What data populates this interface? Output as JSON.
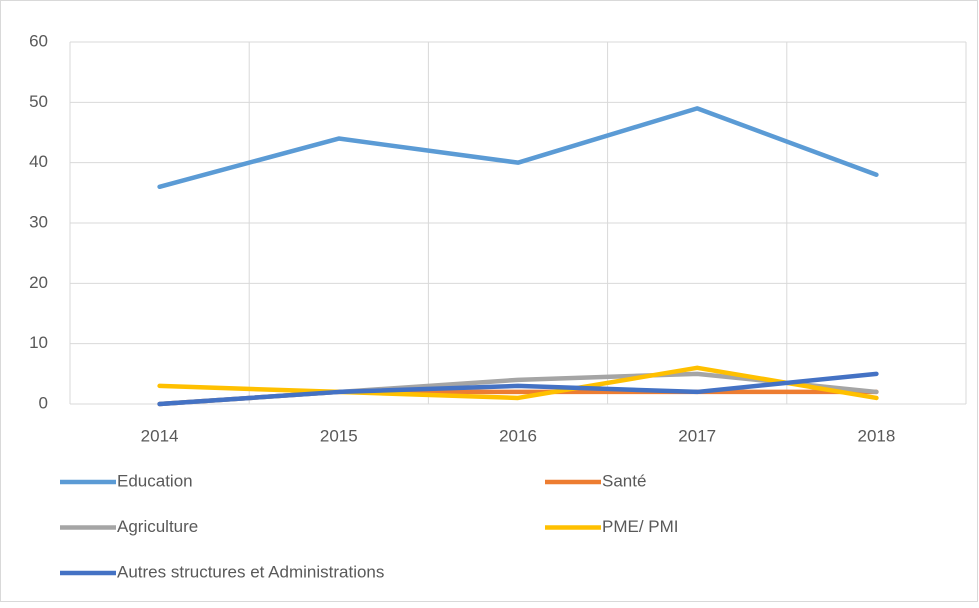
{
  "chart_data": {
    "type": "line",
    "categories": [
      "2014",
      "2015",
      "2016",
      "2017",
      "2018"
    ],
    "series": [
      {
        "name": "Education",
        "color": "#5b9bd5",
        "values": [
          36,
          44,
          40,
          49,
          38
        ]
      },
      {
        "name": "Santé",
        "color": "#ed7d31",
        "values": [
          0,
          2,
          2,
          2,
          2
        ]
      },
      {
        "name": "Agriculture",
        "color": "#a5a5a5",
        "values": [
          0,
          2,
          4,
          5,
          2
        ]
      },
      {
        "name": "PME/ PMI",
        "color": "#ffc000",
        "values": [
          3,
          2,
          1,
          6,
          1
        ]
      },
      {
        "name": "Autres structures et Administrations",
        "color": "#4472c4",
        "values": [
          0,
          2,
          3,
          2,
          5
        ]
      }
    ],
    "ylim": [
      0,
      60
    ],
    "yticks": [
      0,
      10,
      20,
      30,
      40,
      50,
      60
    ],
    "grid": true,
    "legend": "bottom"
  }
}
